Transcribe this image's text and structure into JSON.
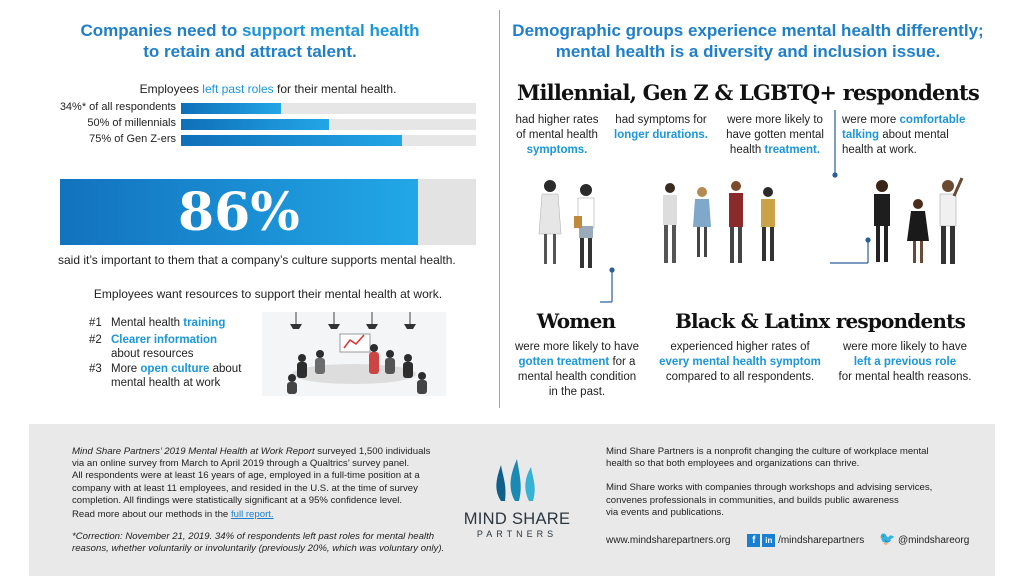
{
  "left": {
    "title_line1_a": "Companies need to ",
    "title_line1_b": "support mental health",
    "title_line2": "to retain and attract talent.",
    "left_roles_a": "Employees ",
    "left_roles_b": "left past roles",
    "left_roles_c": " for their mental health.",
    "bars": [
      {
        "label": "34%* of all respondents",
        "value": 34
      },
      {
        "label": "50% of millennials",
        "value": 50
      },
      {
        "label": "75% of Gen Z-ers",
        "value": 75
      }
    ],
    "big_stat": "86%",
    "big_stat_value": 86,
    "big_stat_caption": "said it’s important to them that a company’s culture supports mental health.",
    "resources_heading": "Employees want resources to support their mental health at work.",
    "ranks": [
      {
        "n": "#1",
        "a": "Mental health ",
        "b": "training",
        "c": "",
        "d": ""
      },
      {
        "n": "#2",
        "a": "",
        "b": "Clearer information",
        "c": "",
        "d": "about resources"
      },
      {
        "n": "#3",
        "a": "More ",
        "b": "open culture",
        "c": " about",
        "d": "mental health at work"
      }
    ]
  },
  "right": {
    "title_line1": "Demographic groups experience mental health differently;",
    "title_line2": "mental health is a diversity and inclusion issue.",
    "millennial_heading": "Millennial, Gen Z & LGBTQ+ respondents",
    "col1": {
      "l1": "had higher rates",
      "l2": "of mental health",
      "l3": "symptoms."
    },
    "col2": {
      "l1": "had symptoms for",
      "l2": "longer durations."
    },
    "col3": {
      "l1": "were more likely to",
      "l2": "have gotten mental",
      "l3a": "health ",
      "l3b": "treatment."
    },
    "col4": {
      "l1a": "were more ",
      "l1b": "comfortable",
      "l2a": "talking",
      "l2b": " about mental",
      "l3": "health at work."
    },
    "women_heading": "Women",
    "women": {
      "l1": "were more likely to have",
      "l2a": "gotten treatment",
      "l2b": " for a",
      "l3": "mental health condition",
      "l4": "in the past."
    },
    "black_heading": "Black & Latinx respondents",
    "black1": {
      "l1": "experienced higher rates of",
      "l2": "every mental health symptom",
      "l3": "compared to all respondents."
    },
    "black2": {
      "l1": "were more likely to have",
      "l2": "left a previous role",
      "l3": "for mental health reasons."
    }
  },
  "footer": {
    "method_a": "Mind Share Partners’ 2019 Mental Health at Work Report",
    "method_b": " surveyed 1,500 individuals",
    "method_2": "via an online survey from March to April 2019 through a Qualtrics’ survey panel.",
    "method_3": "All respondents were at least 16 years of age, employed in a full-time position at a",
    "method_4": "company with at least 11 employees, and resided in the U.S. at the time of survey",
    "method_5": "completion. All findings were statistically significant at a 95% confidence level.",
    "read_more": "Read more about our methods in the ",
    "full_report": "full report.",
    "correction_1": "*Correction: November 21, 2019. 34% of respondents left past roles for mental health",
    "correction_2": "reasons, whether voluntarily or involuntarily (previously 20%, which was voluntary only).",
    "logo_line1": "MIND SHARE",
    "logo_line2": "PARTNERS",
    "about_1": "Mind Share Partners is a nonprofit changing the culture of workplace mental",
    "about_2": "health so that both employees and organizations can thrive.",
    "about_3": "Mind Share works with companies through workshops and advising services,",
    "about_4": "convenes professionals in communities, and builds public awareness",
    "about_5": "via events and publications.",
    "website": "www.mindsharepartners.org",
    "fb_li_handle": "/mindsharepartners",
    "twitter_handle": "@mindshareorg"
  },
  "colors": {
    "accent": "#1a96d9",
    "title": "#1f7fc9",
    "footer_bg": "#e9e9e9"
  }
}
